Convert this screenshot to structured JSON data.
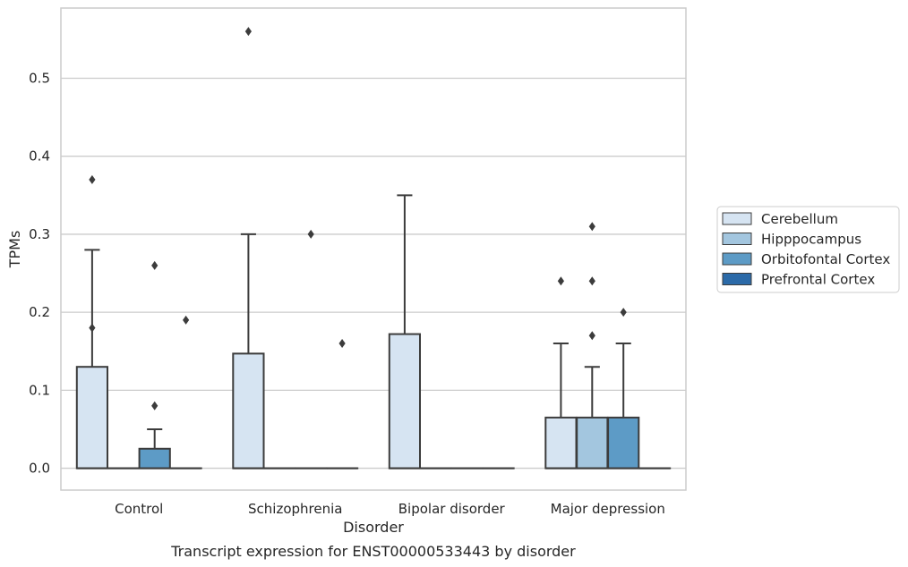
{
  "colors": {
    "background": "#ffffff",
    "grid": "#cccccc",
    "box_edge": "#3c3c3c",
    "Cerebellum": "#d6e4f2",
    "Hipppocampus": "#a3c6df",
    "Orbitofontal Cortex": "#5d9bc6",
    "Prefrontal Cortex": "#2b6aa8"
  },
  "caption": "Transcript expression for ENST00000533443 by disorder",
  "chart_data": {
    "type": "boxplot",
    "xlabel": "Disorder",
    "ylabel": "TPMs",
    "ylim": [
      -0.028,
      0.59
    ],
    "yticks": [
      0.0,
      0.1,
      0.2,
      0.3,
      0.4,
      0.5
    ],
    "ytick_labels": [
      "0.0",
      "0.1",
      "0.2",
      "0.3",
      "0.4",
      "0.5"
    ],
    "categories": [
      "Control",
      "Schizophrenia",
      "Bipolar disorder",
      "Major depression"
    ],
    "grid": "horizontal",
    "legend_position": "right",
    "series": [
      {
        "name": "Cerebellum",
        "boxes": [
          {
            "q1": 0.0,
            "median": 0.0,
            "q3": 0.13,
            "whisker_low": 0.0,
            "whisker_high": 0.28,
            "outliers": [
              0.37,
              0.18
            ]
          },
          {
            "q1": 0.0,
            "median": 0.0,
            "q3": 0.147,
            "whisker_low": 0.0,
            "whisker_high": 0.3,
            "outliers": [
              0.56
            ]
          },
          {
            "q1": 0.0,
            "median": 0.0,
            "q3": 0.172,
            "whisker_low": 0.0,
            "whisker_high": 0.35,
            "outliers": []
          },
          {
            "q1": 0.0,
            "median": 0.0,
            "q3": 0.065,
            "whisker_low": 0.0,
            "whisker_high": 0.16,
            "outliers": [
              0.24
            ]
          }
        ]
      },
      {
        "name": "Hipppocampus",
        "boxes": [
          {
            "q1": 0.0,
            "median": 0.0,
            "q3": 0.0,
            "whisker_low": 0.0,
            "whisker_high": 0.0,
            "outliers": []
          },
          {
            "q1": 0.0,
            "median": 0.0,
            "q3": 0.0,
            "whisker_low": 0.0,
            "whisker_high": 0.0,
            "outliers": []
          },
          {
            "q1": 0.0,
            "median": 0.0,
            "q3": 0.0,
            "whisker_low": 0.0,
            "whisker_high": 0.0,
            "outliers": []
          },
          {
            "q1": 0.0,
            "median": 0.0,
            "q3": 0.065,
            "whisker_low": 0.0,
            "whisker_high": 0.13,
            "outliers": [
              0.17,
              0.24,
              0.31
            ]
          }
        ]
      },
      {
        "name": "Orbitofontal Cortex",
        "boxes": [
          {
            "q1": 0.0,
            "median": 0.0,
            "q3": 0.025,
            "whisker_low": 0.0,
            "whisker_high": 0.05,
            "outliers": [
              0.08,
              0.26
            ]
          },
          {
            "q1": 0.0,
            "median": 0.0,
            "q3": 0.0,
            "whisker_low": 0.0,
            "whisker_high": 0.0,
            "outliers": [
              0.3
            ]
          },
          {
            "q1": 0.0,
            "median": 0.0,
            "q3": 0.0,
            "whisker_low": 0.0,
            "whisker_high": 0.0,
            "outliers": []
          },
          {
            "q1": 0.0,
            "median": 0.0,
            "q3": 0.065,
            "whisker_low": 0.0,
            "whisker_high": 0.16,
            "outliers": [
              0.2
            ]
          }
        ]
      },
      {
        "name": "Prefrontal Cortex",
        "boxes": [
          {
            "q1": 0.0,
            "median": 0.0,
            "q3": 0.0,
            "whisker_low": 0.0,
            "whisker_high": 0.0,
            "outliers": [
              0.19
            ]
          },
          {
            "q1": 0.0,
            "median": 0.0,
            "q3": 0.0,
            "whisker_low": 0.0,
            "whisker_high": 0.0,
            "outliers": [
              0.16
            ]
          },
          {
            "q1": 0.0,
            "median": 0.0,
            "q3": 0.0,
            "whisker_low": 0.0,
            "whisker_high": 0.0,
            "outliers": []
          },
          {
            "q1": 0.0,
            "median": 0.0,
            "q3": 0.0,
            "whisker_low": 0.0,
            "whisker_high": 0.0,
            "outliers": []
          }
        ]
      }
    ]
  }
}
